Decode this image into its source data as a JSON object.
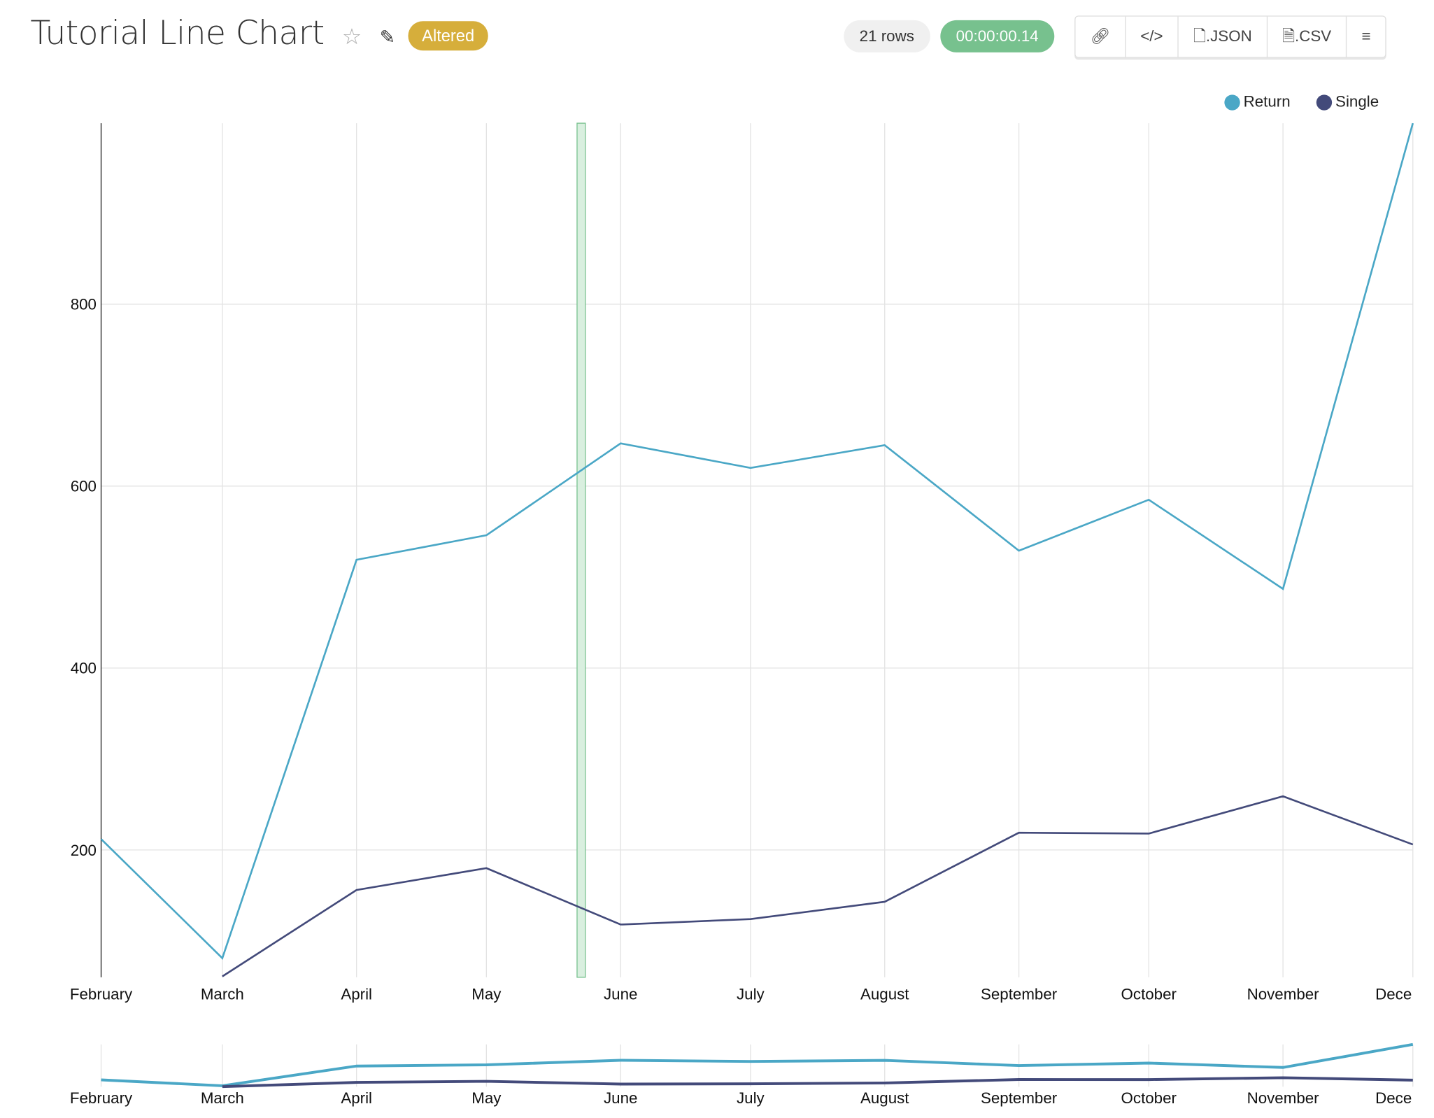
{
  "header": {
    "title": "Tutorial Line Chart",
    "badge": "Altered",
    "rows": "21 rows",
    "timer": "00:00:00.14",
    "buttons": {
      "json": ".JSON",
      "csv": ".CSV"
    }
  },
  "colors": {
    "Return": "#4aa7c6",
    "Single": "#434a7a",
    "badge": "#d6ae3b",
    "timer": "#77c18e",
    "highlight": "#77c18e"
  },
  "chart_data": {
    "type": "line",
    "x": [
      "February",
      "March",
      "April",
      "May",
      "June",
      "July",
      "August",
      "September",
      "October",
      "November",
      "December"
    ],
    "x_tick_labels": [
      "February",
      "March",
      "April",
      "May",
      "June",
      "July",
      "August",
      "September",
      "October",
      "November",
      "Dece"
    ],
    "series": [
      {
        "name": "Return",
        "values": [
          212,
          81,
          519,
          546,
          647,
          620,
          645,
          529,
          585,
          487,
          999
        ]
      },
      {
        "name": "Single",
        "values": [
          null,
          61,
          156,
          180,
          118,
          124,
          143,
          219,
          218,
          259,
          206
        ]
      }
    ],
    "y_ticks": [
      200,
      400,
      600,
      800
    ],
    "ylim": [
      60,
      999
    ],
    "grid": true,
    "legend": "top-right",
    "overview_chart": true
  }
}
